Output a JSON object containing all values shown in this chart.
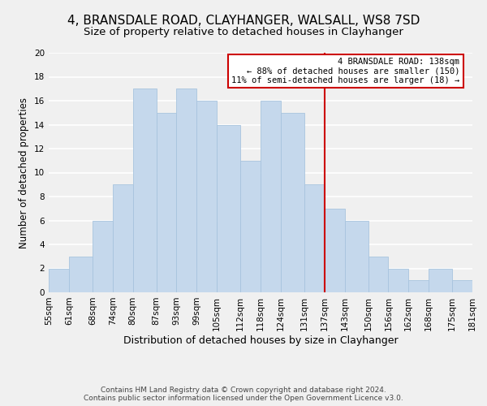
{
  "title1": "4, BRANSDALE ROAD, CLAYHANGER, WALSALL, WS8 7SD",
  "title2": "Size of property relative to detached houses in Clayhanger",
  "xlabel": "Distribution of detached houses by size in Clayhanger",
  "ylabel": "Number of detached properties",
  "bar_values": [
    2,
    3,
    6,
    9,
    17,
    15,
    17,
    16,
    14,
    11,
    16,
    15,
    9,
    7,
    6,
    3,
    2,
    1,
    2,
    1
  ],
  "bin_edges": [
    55,
    61,
    68,
    74,
    80,
    87,
    93,
    99,
    105,
    112,
    118,
    124,
    131,
    137,
    143,
    150,
    156,
    162,
    168,
    175,
    181
  ],
  "tick_labels": [
    "55sqm",
    "61sqm",
    "68sqm",
    "74sqm",
    "80sqm",
    "87sqm",
    "93sqm",
    "99sqm",
    "105sqm",
    "112sqm",
    "118sqm",
    "124sqm",
    "131sqm",
    "137sqm",
    "143sqm",
    "150sqm",
    "156sqm",
    "162sqm",
    "168sqm",
    "175sqm",
    "181sqm"
  ],
  "bar_color": "#c5d8ec",
  "bar_edgecolor": "#a8c4de",
  "vline_x": 137,
  "vline_color": "#cc0000",
  "ylim": [
    0,
    20
  ],
  "yticks": [
    0,
    2,
    4,
    6,
    8,
    10,
    12,
    14,
    16,
    18,
    20
  ],
  "annotation_title": "4 BRANSDALE ROAD: 138sqm",
  "annotation_line1": "← 88% of detached houses are smaller (150)",
  "annotation_line2": "11% of semi-detached houses are larger (18) →",
  "annotation_box_color": "#ffffff",
  "annotation_box_edgecolor": "#cc0000",
  "footer1": "Contains HM Land Registry data © Crown copyright and database right 2024.",
  "footer2": "Contains public sector information licensed under the Open Government Licence v3.0.",
  "background_color": "#f0f0f0",
  "grid_color": "#ffffff",
  "title1_fontsize": 11,
  "title2_fontsize": 9.5,
  "xlabel_fontsize": 9,
  "ylabel_fontsize": 8.5,
  "tick_fontsize": 7.5,
  "footer_fontsize": 6.5,
  "annotation_fontsize": 7.5
}
